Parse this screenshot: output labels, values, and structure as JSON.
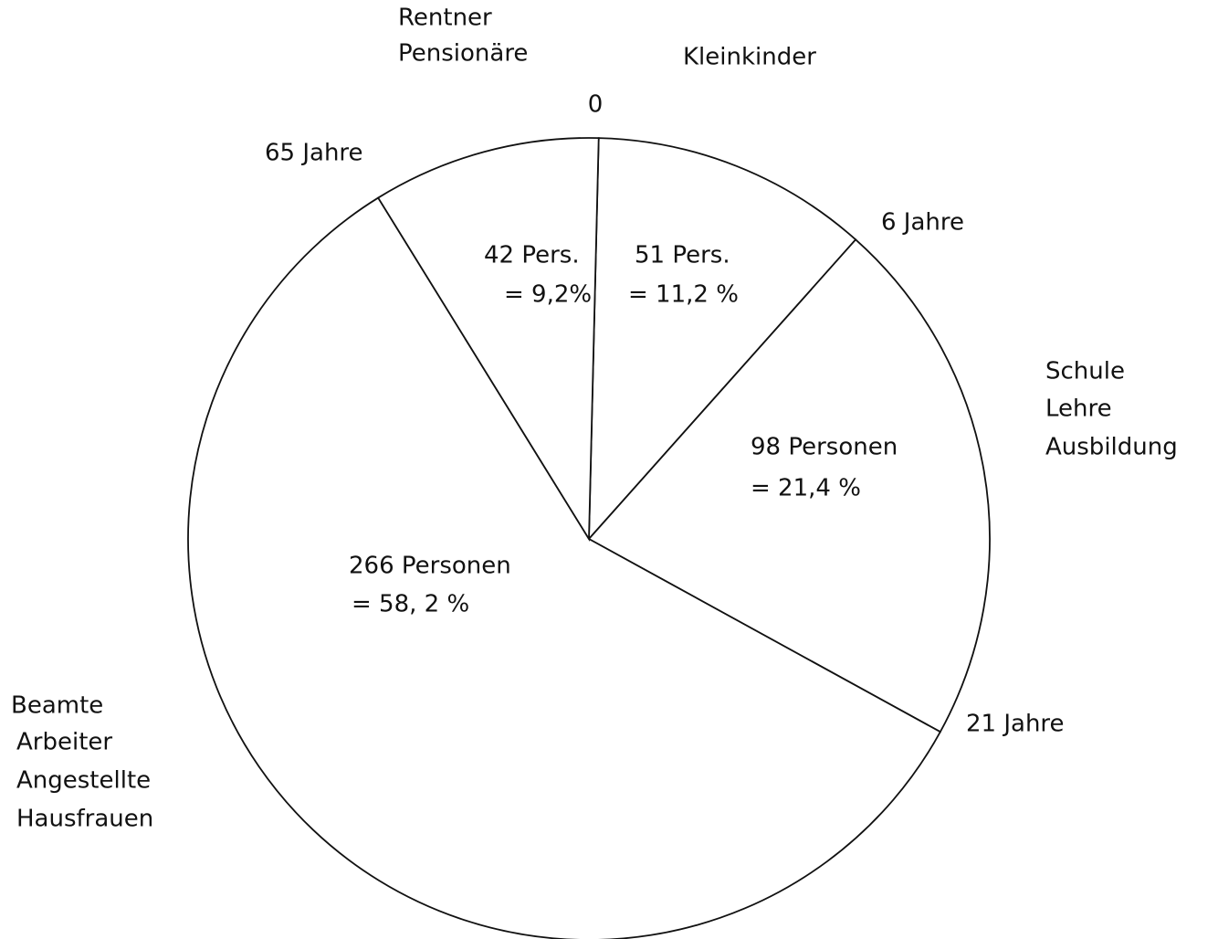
{
  "chart_data": {
    "type": "pie",
    "categories": [
      [
        "Kleinkinder"
      ],
      [
        "Schule",
        "Lehre",
        "Ausbildung"
      ],
      [
        "Beamte",
        "Arbeiter",
        "Angestellte",
        "Hausfrauen"
      ],
      [
        "Rentner",
        "Pensionäre"
      ]
    ],
    "values": [
      11.2,
      21.4,
      58.2,
      9.2
    ],
    "value_labels": [
      "=  11,2 %",
      "=  21,4 %",
      "=   58, 2 %",
      "=  9,2%"
    ],
    "counts": [
      51,
      98,
      266,
      42
    ],
    "count_labels": [
      "51 Pers.",
      "98 Personen",
      "266 Personen",
      "42 Pers."
    ],
    "boundary_labels": [
      "0",
      "6 Jahre",
      "21 Jahre",
      "65 Jahre"
    ],
    "color": "#ffffff"
  }
}
